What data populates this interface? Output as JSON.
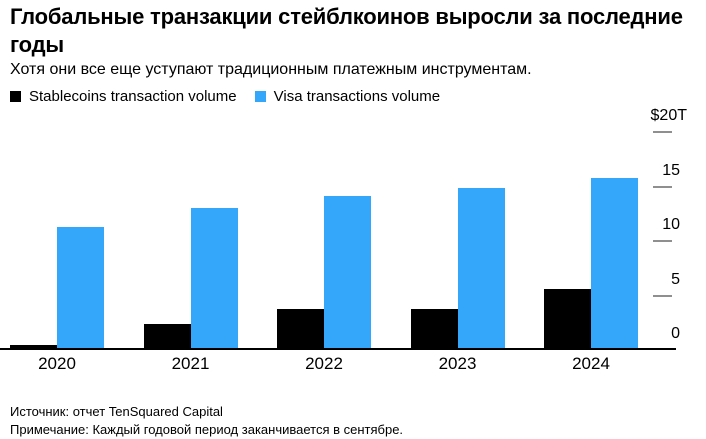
{
  "header": {
    "title_lines": [
      "Глобальные транзакции стейблкоинов выросли за последние",
      "годы"
    ],
    "subtitle": "Хотя они все еще уступают традиционным платежным инструментам."
  },
  "colors": {
    "stablecoins": "#000000",
    "visa": "#35a7fa",
    "tick_dash": "#8f8f8f",
    "axis_line": "#000000"
  },
  "chart_data": {
    "type": "bar",
    "title": "Глобальные транзакции стейблкоинов выросли за последние годы",
    "subtitle": "Хотя они все еще уступают традиционным платежным инструментам.",
    "unit": "$T",
    "categories": [
      "2020",
      "2021",
      "2022",
      "2023",
      "2024"
    ],
    "series": [
      {
        "name": "Stablecoins transaction volume",
        "color": "#000000",
        "values": [
          0.5,
          2.4,
          3.8,
          3.8,
          5.6
        ]
      },
      {
        "name": "Visa transactions volume",
        "color": "#35a7fa",
        "values": [
          11.3,
          13.0,
          14.1,
          14.9,
          15.8
        ]
      }
    ],
    "y_axis": {
      "side": "right",
      "min": 0,
      "max": 20,
      "top_label": "$20T",
      "ticks": [
        {
          "label": "$20T",
          "value": 20
        },
        {
          "label": "15",
          "value": 15
        },
        {
          "label": "10",
          "value": 10
        },
        {
          "label": "5",
          "value": 5
        },
        {
          "label": "0",
          "value": 0
        }
      ]
    },
    "grid": false,
    "legend_position": "top-left"
  },
  "footer": {
    "source": "Источник: отчет TenSquared Capital",
    "note": "Примечание: Каждый годовой период заканчивается в сентябре."
  }
}
